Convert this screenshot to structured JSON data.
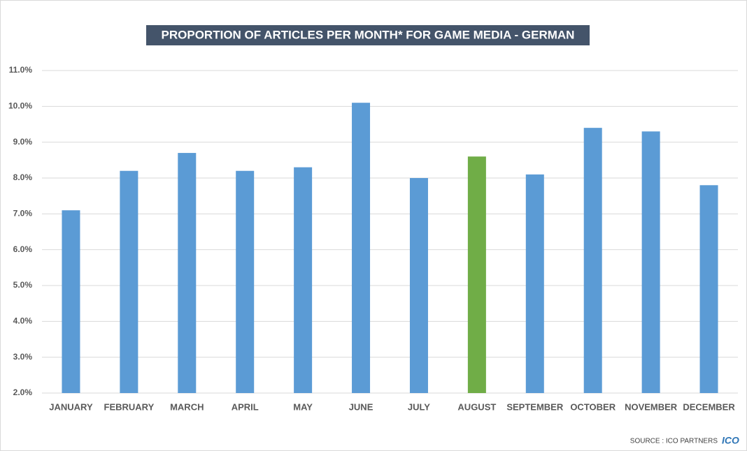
{
  "chart_data": {
    "type": "bar",
    "title": "PROPORTION OF ARTICLES PER MONTH* FOR GAME MEDIA - GERMAN",
    "categories": [
      "JANUARY",
      "FEBRUARY",
      "MARCH",
      "APRIL",
      "MAY",
      "JUNE",
      "JULY",
      "AUGUST",
      "SEPTEMBER",
      "OCTOBER",
      "NOVEMBER",
      "DECEMBER"
    ],
    "values": [
      7.1,
      8.2,
      8.7,
      8.2,
      8.3,
      10.1,
      8.0,
      8.6,
      8.1,
      9.4,
      9.3,
      7.8
    ],
    "colors": [
      "#5b9bd5",
      "#5b9bd5",
      "#5b9bd5",
      "#5b9bd5",
      "#5b9bd5",
      "#5b9bd5",
      "#5b9bd5",
      "#70ad47",
      "#5b9bd5",
      "#5b9bd5",
      "#5b9bd5",
      "#5b9bd5"
    ],
    "ylim": [
      2,
      11
    ],
    "yticks": [
      {
        "value": 2,
        "label": "2.0%"
      },
      {
        "value": 3,
        "label": "3.0%"
      },
      {
        "value": 4,
        "label": "4.0%"
      },
      {
        "value": 5,
        "label": "5.0%"
      },
      {
        "value": 6,
        "label": "6.0%"
      },
      {
        "value": 7,
        "label": "7.0%"
      },
      {
        "value": 8,
        "label": "8.0%"
      },
      {
        "value": 9,
        "label": "9.0%"
      },
      {
        "value": 10,
        "label": "10.0%"
      },
      {
        "value": 11,
        "label": "11.0%"
      }
    ],
    "grid": true,
    "source": "SOURCE : ICO PARTNERS",
    "logo": "ICO"
  }
}
